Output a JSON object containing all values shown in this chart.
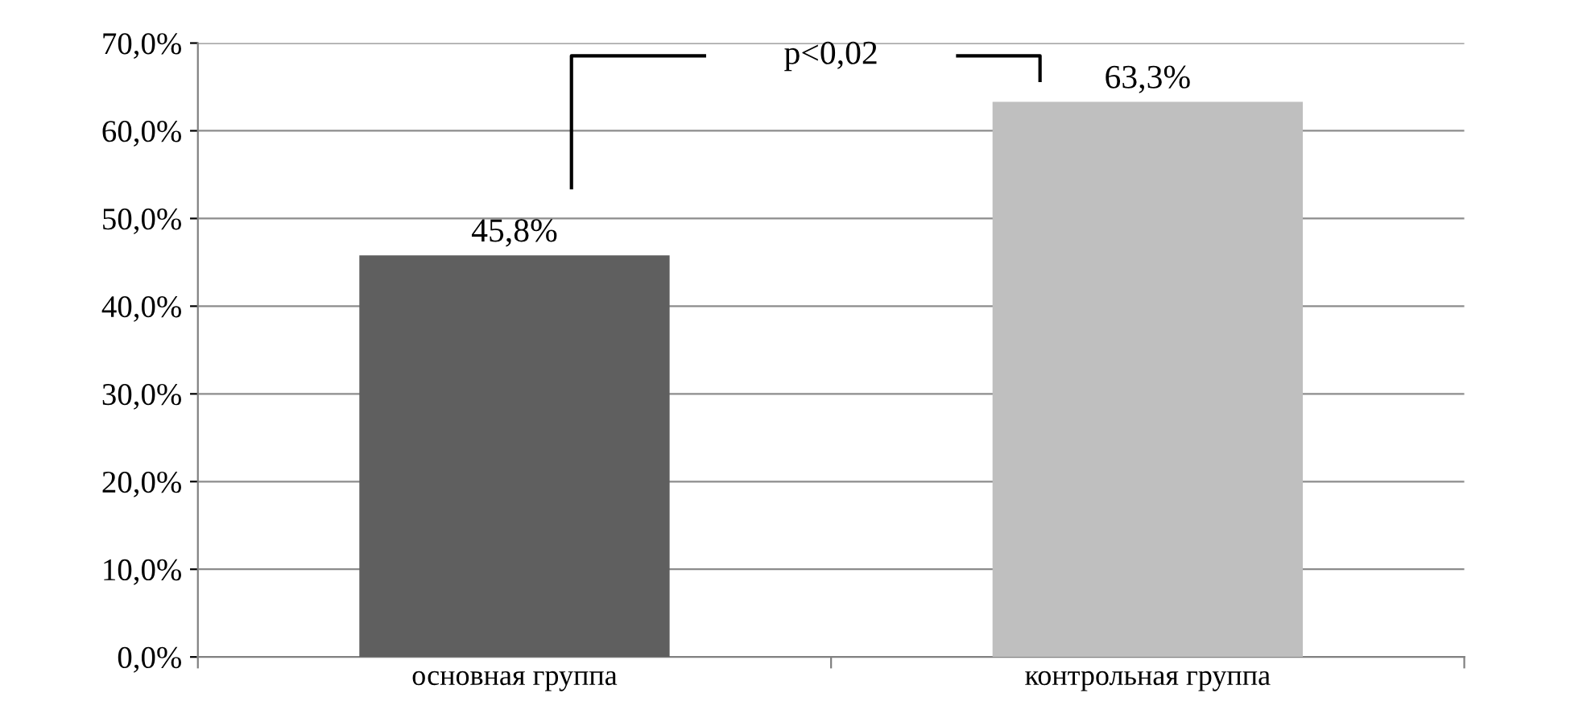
{
  "chart_data": {
    "type": "bar",
    "categories": [
      "основная группа",
      "контрольная группа"
    ],
    "values": [
      45.8,
      63.3
    ],
    "colors": [
      "#5f5f5f",
      "#bfbfbf"
    ],
    "value_labels": [
      "45,8%",
      "63,3%"
    ],
    "ylim": [
      0,
      70
    ],
    "yticks": [
      {
        "value": 0,
        "label": "0,0%"
      },
      {
        "value": 10,
        "label": "10,0%"
      },
      {
        "value": 20,
        "label": "20,0%"
      },
      {
        "value": 30,
        "label": "30,0%"
      },
      {
        "value": 40,
        "label": "40,0%"
      },
      {
        "value": 50,
        "label": "50,0%"
      },
      {
        "value": 60,
        "label": "60,0%"
      },
      {
        "value": 70,
        "label": "70,0%"
      }
    ],
    "grid": "y",
    "annotations": [
      "p<0,02"
    ]
  }
}
